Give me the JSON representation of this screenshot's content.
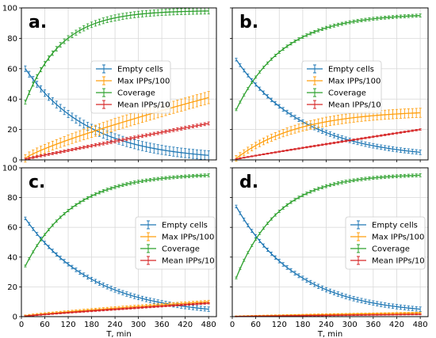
{
  "figure": {
    "xlabel": "T, min"
  },
  "chart_data": [
    {
      "panel_label": "a.",
      "type": "line",
      "xlim": [
        0,
        500
      ],
      "ylim": [
        0,
        100
      ],
      "xticks": [
        0,
        60,
        120,
        180,
        240,
        300,
        360,
        420,
        480
      ],
      "yticks": [
        0,
        20,
        40,
        60,
        80,
        100
      ],
      "show_xtick_labels": false,
      "show_ytick_labels": true,
      "xlabel": "",
      "grid": true,
      "legend_position": "center-right",
      "series": [
        {
          "name": "Empty cells",
          "color": "#1f77b4",
          "curve": "decay",
          "start": 60,
          "end": 3,
          "k": 0.0062,
          "err": 3
        },
        {
          "name": "Max IPPs/100",
          "color": "#ff9f0e",
          "curve": "power",
          "start": 1,
          "end": 41,
          "p": 0.82,
          "err": 4
        },
        {
          "name": "Coverage",
          "color": "#2ca02c",
          "curve": "saturate",
          "start": 38,
          "end": 98,
          "k": 0.0109,
          "err": 2
        },
        {
          "name": "Mean IPPs/10",
          "color": "#d62728",
          "curve": "power",
          "start": 0.5,
          "end": 24,
          "p": 0.97,
          "err": 1
        }
      ]
    },
    {
      "panel_label": "b.",
      "type": "line",
      "xlim": [
        0,
        500
      ],
      "ylim": [
        0,
        100
      ],
      "xticks": [
        0,
        60,
        120,
        180,
        240,
        300,
        360,
        420,
        480
      ],
      "yticks": [
        0,
        20,
        40,
        60,
        80,
        100
      ],
      "show_xtick_labels": false,
      "show_ytick_labels": false,
      "xlabel": "",
      "grid": true,
      "legend_position": "center-right",
      "series": [
        {
          "name": "Empty cells",
          "color": "#1f77b4",
          "curve": "decay",
          "start": 66,
          "end": 5,
          "k": 0.0058,
          "err": 1.5
        },
        {
          "name": "Max IPPs/100",
          "color": "#ff9f0e",
          "curve": "saturate",
          "start": 1,
          "end": 31,
          "k": 0.0062,
          "err": 3
        },
        {
          "name": "Coverage",
          "color": "#2ca02c",
          "curve": "saturate",
          "start": 33,
          "end": 95,
          "k": 0.0083,
          "err": 1
        },
        {
          "name": "Mean IPPs/10",
          "color": "#d62728",
          "curve": "power",
          "start": 0.5,
          "end": 20,
          "p": 0.95,
          "err": 0.5
        }
      ]
    },
    {
      "panel_label": "c.",
      "type": "line",
      "xlim": [
        0,
        500
      ],
      "ylim": [
        0,
        100
      ],
      "xticks": [
        0,
        60,
        120,
        180,
        240,
        300,
        360,
        420,
        480
      ],
      "yticks": [
        0,
        20,
        40,
        60,
        80,
        100
      ],
      "show_xtick_labels": true,
      "show_ytick_labels": true,
      "xlabel": "T, min",
      "grid": true,
      "legend_position": "center-right",
      "series": [
        {
          "name": "Empty cells",
          "color": "#1f77b4",
          "curve": "decay",
          "start": 66,
          "end": 5,
          "k": 0.0058,
          "err": 1.5
        },
        {
          "name": "Max IPPs/100",
          "color": "#ff9f0e",
          "curve": "power",
          "start": 0.5,
          "end": 10,
          "p": 0.85,
          "err": 1
        },
        {
          "name": "Coverage",
          "color": "#2ca02c",
          "curve": "saturate",
          "start": 34,
          "end": 95,
          "k": 0.0083,
          "err": 1
        },
        {
          "name": "Mean IPPs/10",
          "color": "#d62728",
          "curve": "power",
          "start": 0.3,
          "end": 9,
          "p": 0.9,
          "err": 0.5
        }
      ]
    },
    {
      "panel_label": "d.",
      "type": "line",
      "xlim": [
        0,
        500
      ],
      "ylim": [
        0,
        100
      ],
      "xticks": [
        0,
        60,
        120,
        180,
        240,
        300,
        360,
        420,
        480
      ],
      "yticks": [
        0,
        20,
        40,
        60,
        80,
        100
      ],
      "show_xtick_labels": true,
      "show_ytick_labels": false,
      "xlabel": "T, min",
      "grid": true,
      "legend_position": "center-right",
      "series": [
        {
          "name": "Empty cells",
          "color": "#1f77b4",
          "curve": "decay",
          "start": 74,
          "end": 5,
          "k": 0.0064,
          "err": 1.5
        },
        {
          "name": "Max IPPs/100",
          "color": "#ff9f0e",
          "curve": "power",
          "start": 0.2,
          "end": 2.5,
          "p": 0.9,
          "err": 0.5
        },
        {
          "name": "Coverage",
          "color": "#2ca02c",
          "curve": "saturate",
          "start": 26,
          "end": 95,
          "k": 0.0093,
          "err": 1
        },
        {
          "name": "Mean IPPs/10",
          "color": "#d62728",
          "curve": "power",
          "start": 0.1,
          "end": 1.5,
          "p": 0.9,
          "err": 0.3
        }
      ]
    }
  ]
}
